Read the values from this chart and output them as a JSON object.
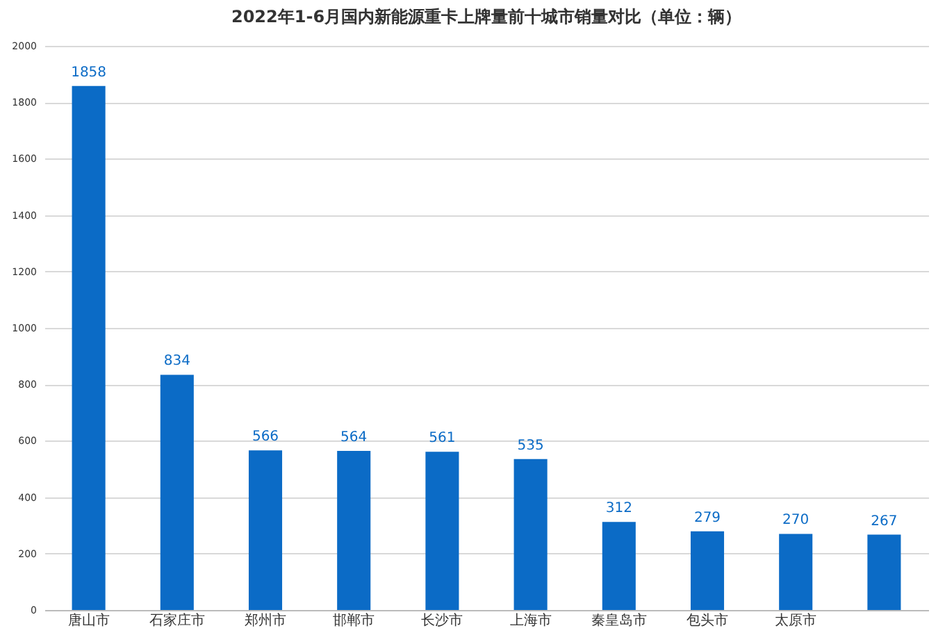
{
  "chart_data": {
    "type": "bar",
    "title": "2022年1-6月国内新能源重卡上牌量前十城市销量对比（单位：辆）",
    "categories": [
      "唐山市",
      "石家庄市",
      "郑州市",
      "邯郸市",
      "长沙市",
      "上海市",
      "秦皇岛市",
      "包头市",
      "太原市",
      null
    ],
    "values": [
      1858,
      834,
      566,
      564,
      561,
      535,
      312,
      279,
      270,
      267
    ],
    "color": "#0b6bc6",
    "ylim": [
      0,
      2000
    ],
    "yticks": [
      0,
      200,
      400,
      600,
      800,
      1000,
      1200,
      1400,
      1600,
      1800,
      2000
    ],
    "grid": "y",
    "data_labels": true
  }
}
